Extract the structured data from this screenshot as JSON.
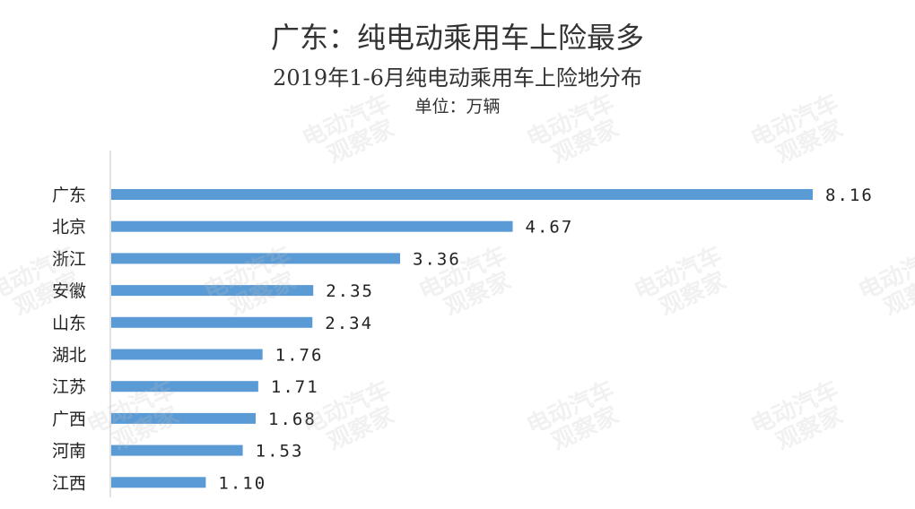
{
  "title": "广东：纯电动乘用车上险最多",
  "subtitle": "2019年1-6月纯电动乘用车上险地分布",
  "unit": "单位：万辆",
  "watermark": "电动汽车观察家",
  "chart_data": {
    "type": "bar",
    "orientation": "horizontal",
    "categories": [
      "广东",
      "北京",
      "浙江",
      "安徽",
      "山东",
      "湖北",
      "江苏",
      "广西",
      "河南",
      "江西"
    ],
    "values": [
      8.16,
      4.67,
      3.36,
      2.35,
      2.34,
      1.76,
      1.71,
      1.68,
      1.53,
      1.1
    ],
    "value_labels": [
      "8.16",
      "4.67",
      "3.36",
      "2.35",
      "2.34",
      "1.76",
      "1.71",
      "1.68",
      "1.53",
      "1.10"
    ],
    "title": "广东：纯电动乘用车上险最多",
    "subtitle": "2019年1-6月纯电动乘用车上险地分布",
    "unit": "单位：万辆",
    "xlim": [
      0,
      8.16
    ],
    "grid": false,
    "legend": "none",
    "bar_color": "#5b9bd5"
  }
}
